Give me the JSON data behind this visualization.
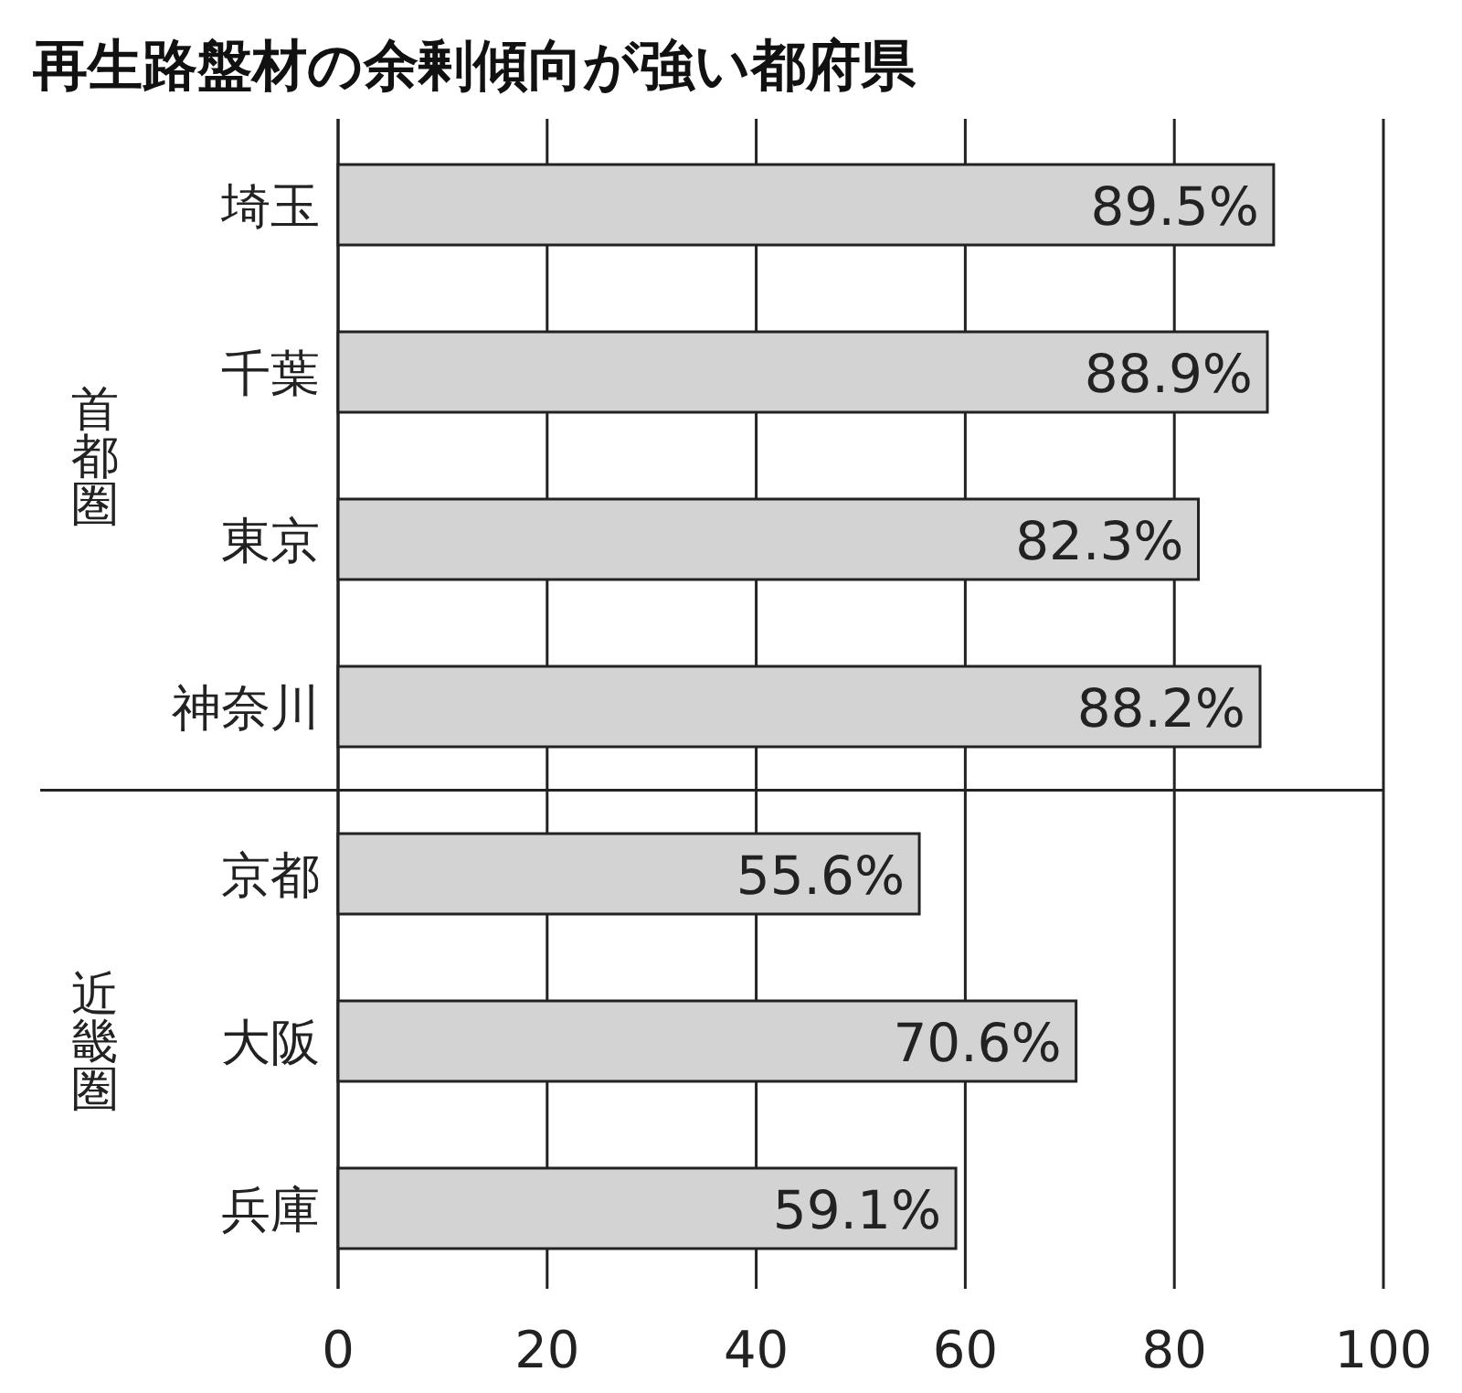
{
  "chart_data": {
    "type": "bar",
    "orientation": "horizontal",
    "title": "再生路盤材の余剰傾向が強い都府県",
    "categories": [
      "埼玉",
      "千葉",
      "東京",
      "神奈川",
      "京都",
      "大阪",
      "兵庫"
    ],
    "values": [
      89.5,
      88.9,
      82.3,
      88.2,
      55.6,
      70.6,
      59.1
    ],
    "value_labels": [
      "89.5%",
      "88.9%",
      "82.3%",
      "88.2%",
      "55.6%",
      "70.6%",
      "59.1%"
    ],
    "color": "#d3d3d3",
    "xlim": [
      0,
      100
    ],
    "xticks": [
      0,
      20,
      40,
      60,
      80,
      100
    ],
    "grid": "x",
    "annotations": [
      "首都圏",
      "近畿圏"
    ]
  }
}
